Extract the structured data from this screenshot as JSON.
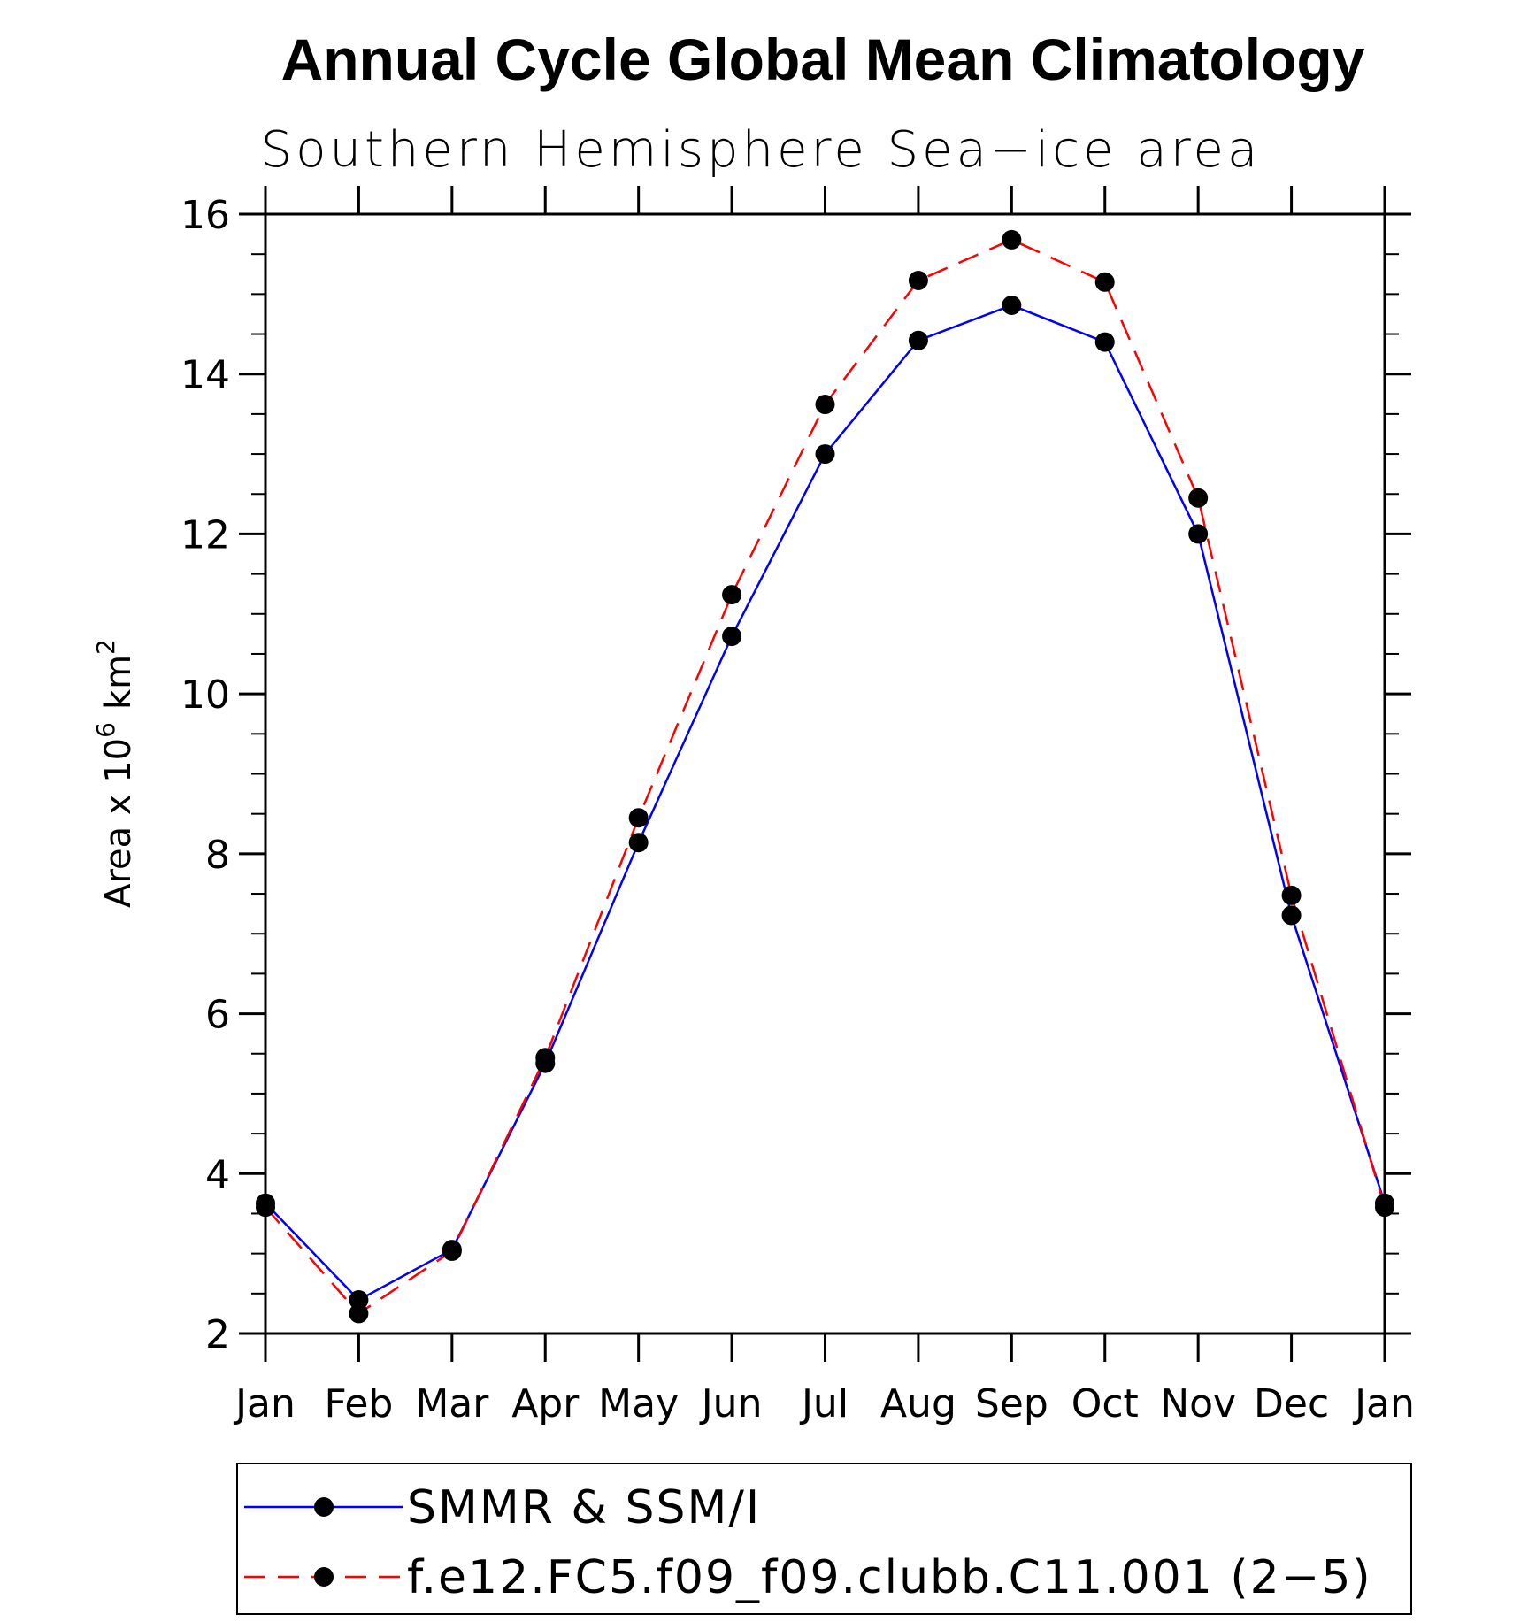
{
  "chart_data": {
    "type": "line",
    "title": "Annual Cycle Global Mean Climatology",
    "subtitle": "Southern Hemisphere Sea−ice area",
    "ylabel_prefix": "Area x 10",
    "ylabel_exp": "6",
    "ylabel_unit": "km",
    "ylabel_unit_exp": "2",
    "ylim": [
      2,
      16
    ],
    "yticks": [
      "2",
      "4",
      "6",
      "8",
      "10",
      "12",
      "14",
      "16"
    ],
    "categories": [
      "Jan",
      "Feb",
      "Mar",
      "Apr",
      "May",
      "Jun",
      "Jul",
      "Aug",
      "Sep",
      "Oct",
      "Nov",
      "Dec",
      "Jan"
    ],
    "series": [
      {
        "name": "SMMR & SSM/I",
        "color": "#0000ff",
        "dash": "solid",
        "values": [
          3.63,
          2.42,
          3.05,
          5.38,
          8.14,
          10.72,
          13.0,
          14.42,
          14.86,
          14.4,
          12.0,
          7.23,
          3.63
        ]
      },
      {
        "name": "f.e12.FC5.f09_f09.clubb.C11.001 (2−5)",
        "color": "#ff0000",
        "dash": "dashed",
        "values": [
          3.58,
          2.25,
          3.03,
          5.45,
          8.45,
          11.24,
          13.62,
          15.17,
          15.68,
          15.15,
          12.45,
          7.48,
          3.58
        ]
      }
    ],
    "grid": false,
    "legend_position": "bottom",
    "marker": "filled-circle"
  }
}
